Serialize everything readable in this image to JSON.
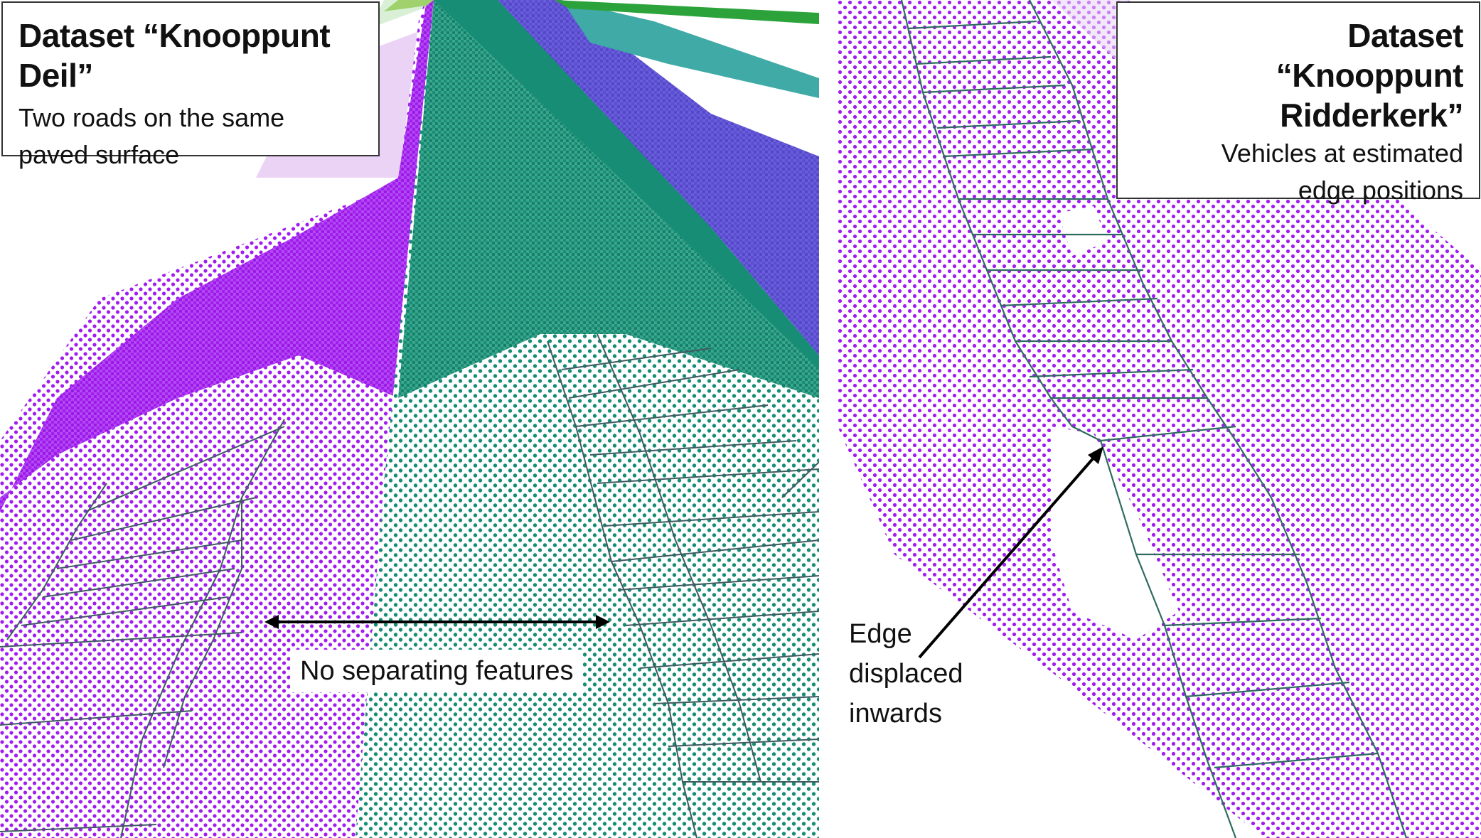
{
  "left_panel": {
    "title": "Dataset “Knooppunt Deil”",
    "subtitle_line1": "Two roads on the same",
    "subtitle_line2": "paved surface",
    "annotation": "No separating features"
  },
  "right_panel": {
    "title_line1": "Dataset",
    "title_line2": "“Knooppunt Ridderkerk”",
    "subtitle_line1": "Vehicles at estimated",
    "subtitle_line2": "edge positions",
    "annotation_line1": "Edge",
    "annotation_line2": "displaced",
    "annotation_line3": "inwards"
  },
  "colors": {
    "road_purple": "#a21cf0",
    "road_green": "#168d74",
    "road_blue": "#5b4dd2",
    "road_light": "#ead3f5",
    "teal_strip": "#3faaa6",
    "green_strip": "#2ca33a",
    "grid_line": "#3f5a61",
    "arrow": "#000000"
  }
}
